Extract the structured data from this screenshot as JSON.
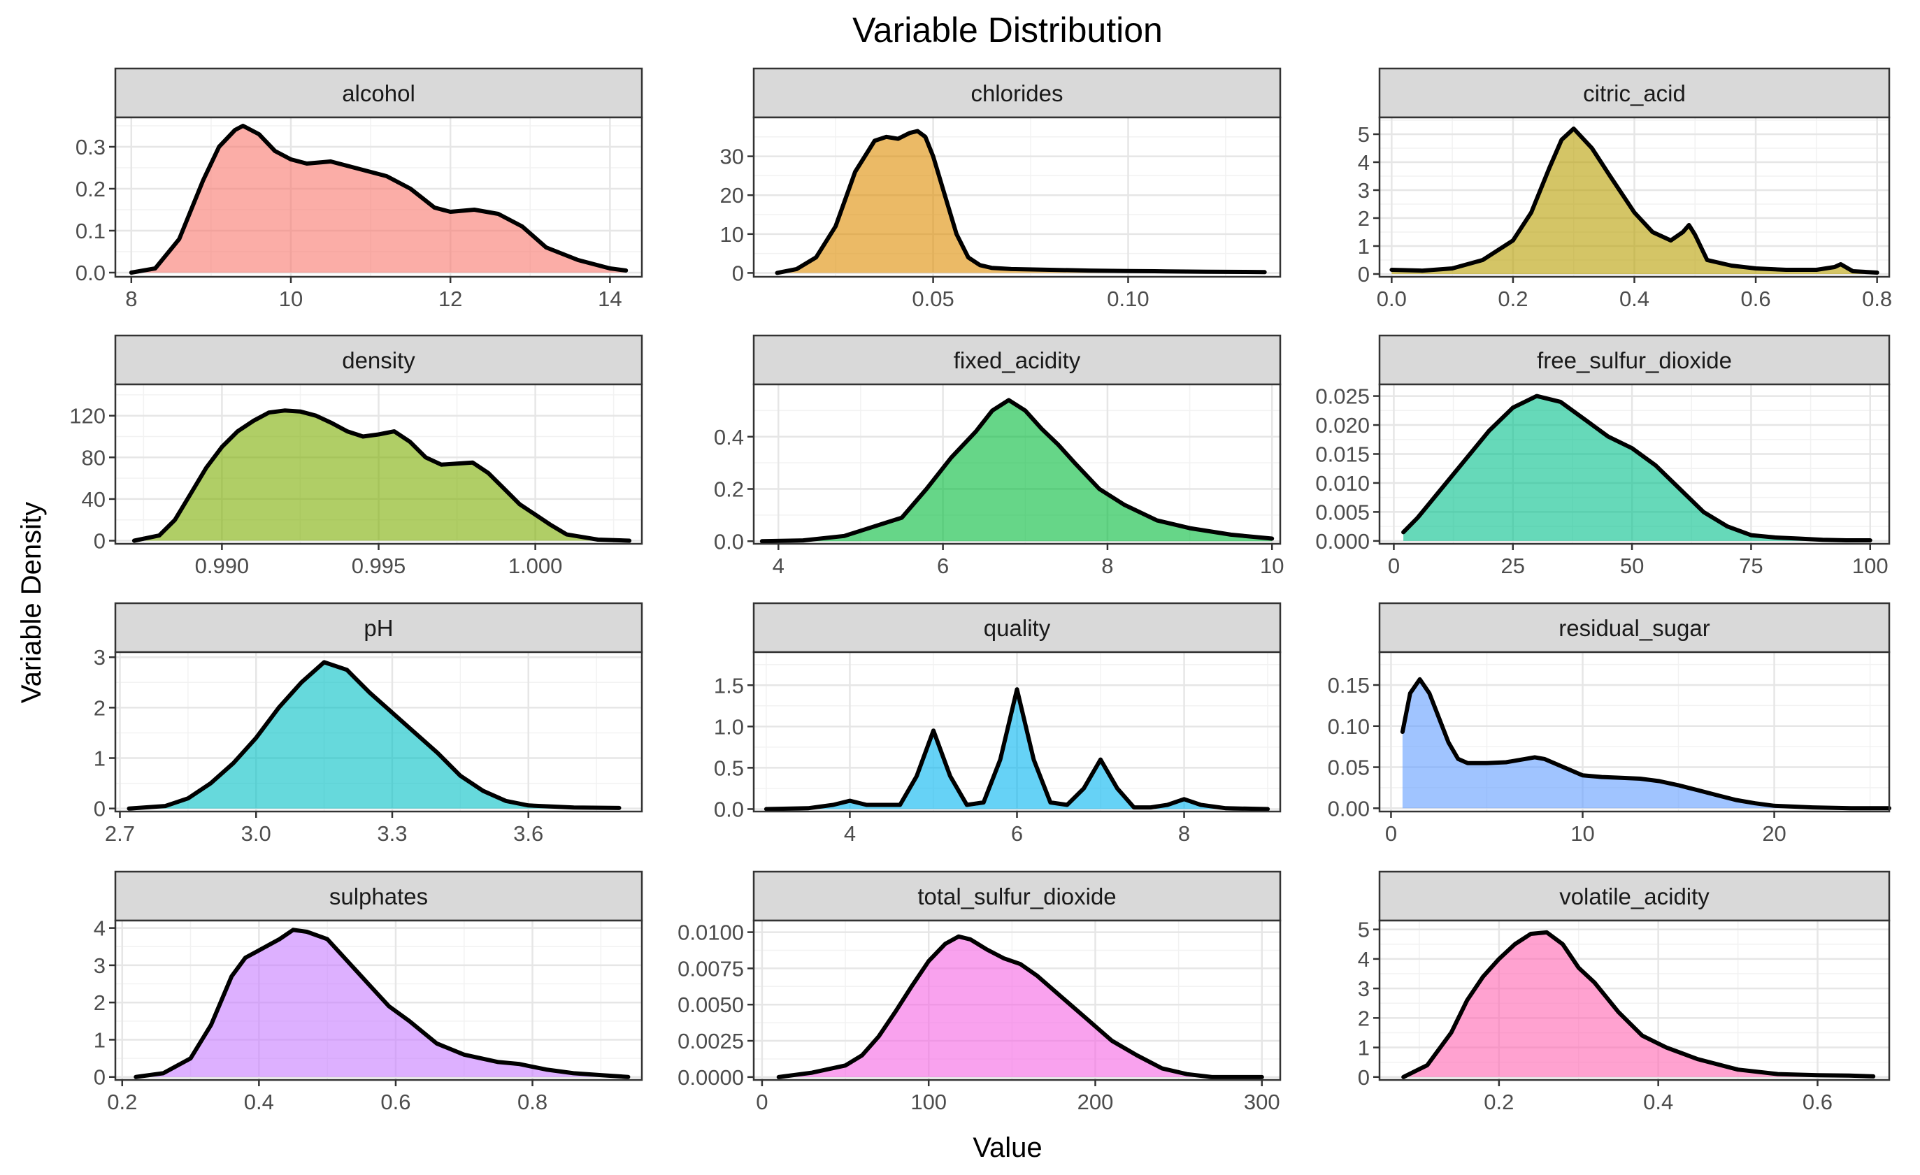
{
  "chart_data": {
    "type": "area",
    "title": "Variable Distribution",
    "xlabel": "Value",
    "ylabel": "Variable Density",
    "grid": true,
    "legend": "none",
    "panels": [
      {
        "name": "alcohol",
        "color": "#F8766D",
        "xlim": [
          7.8,
          14.4
        ],
        "ylim": [
          -0.01,
          0.37
        ],
        "xticks": [
          8,
          10,
          12,
          14
        ],
        "xtick_labels": [
          "8",
          "10",
          "12",
          "14"
        ],
        "yticks": [
          0,
          0.1,
          0.2,
          0.3
        ],
        "ytick_labels": [
          "0.0",
          "0.1",
          "0.2",
          "0.3"
        ],
        "x": [
          8.0,
          8.3,
          8.6,
          8.9,
          9.1,
          9.3,
          9.4,
          9.6,
          9.8,
          10.0,
          10.2,
          10.5,
          10.8,
          11.2,
          11.5,
          11.8,
          12.0,
          12.3,
          12.6,
          12.9,
          13.2,
          13.6,
          14.0,
          14.2
        ],
        "y": [
          0.0,
          0.01,
          0.08,
          0.22,
          0.3,
          0.34,
          0.35,
          0.33,
          0.29,
          0.27,
          0.26,
          0.265,
          0.25,
          0.23,
          0.2,
          0.155,
          0.145,
          0.15,
          0.14,
          0.11,
          0.06,
          0.03,
          0.01,
          0.005
        ]
      },
      {
        "name": "chlorides",
        "color": "#DE8C00",
        "xlim": [
          0.004,
          0.139
        ],
        "ylim": [
          -1.0,
          40
        ],
        "xticks": [
          0.05,
          0.1
        ],
        "xtick_labels": [
          "0.05",
          "0.10"
        ],
        "yticks": [
          0,
          10,
          20,
          30
        ],
        "ytick_labels": [
          "0",
          "10",
          "20",
          "30"
        ],
        "x": [
          0.01,
          0.015,
          0.02,
          0.025,
          0.03,
          0.035,
          0.038,
          0.041,
          0.044,
          0.046,
          0.048,
          0.05,
          0.053,
          0.056,
          0.059,
          0.062,
          0.065,
          0.07,
          0.08,
          0.09,
          0.1,
          0.11,
          0.12,
          0.13,
          0.135
        ],
        "y": [
          0.0,
          1.0,
          4.0,
          12.0,
          26.0,
          34.0,
          35.0,
          34.5,
          36.0,
          36.5,
          35.0,
          30.0,
          20.0,
          10.0,
          4.0,
          2.0,
          1.3,
          1.0,
          0.8,
          0.6,
          0.5,
          0.4,
          0.3,
          0.25,
          0.2
        ]
      },
      {
        "name": "citric_acid",
        "color": "#B79F00",
        "xlim": [
          -0.02,
          0.82
        ],
        "ylim": [
          -0.1,
          5.6
        ],
        "xticks": [
          0.0,
          0.2,
          0.4,
          0.6,
          0.8
        ],
        "xtick_labels": [
          "0.0",
          "0.2",
          "0.4",
          "0.6",
          "0.8"
        ],
        "yticks": [
          0,
          1,
          2,
          3,
          4,
          5
        ],
        "ytick_labels": [
          "0",
          "1",
          "2",
          "3",
          "4",
          "5"
        ],
        "x": [
          0.0,
          0.05,
          0.1,
          0.15,
          0.2,
          0.23,
          0.26,
          0.28,
          0.3,
          0.33,
          0.36,
          0.4,
          0.43,
          0.46,
          0.48,
          0.49,
          0.5,
          0.52,
          0.56,
          0.6,
          0.65,
          0.7,
          0.73,
          0.74,
          0.76,
          0.8
        ],
        "y": [
          0.15,
          0.12,
          0.2,
          0.5,
          1.2,
          2.2,
          3.8,
          4.8,
          5.2,
          4.5,
          3.5,
          2.2,
          1.5,
          1.2,
          1.5,
          1.75,
          1.4,
          0.5,
          0.3,
          0.2,
          0.15,
          0.15,
          0.25,
          0.35,
          0.1,
          0.05
        ]
      },
      {
        "name": "density",
        "color": "#7CAE00",
        "xlim": [
          0.9866,
          1.0034
        ],
        "ylim": [
          -3,
          150
        ],
        "xticks": [
          0.99,
          0.995,
          1.0
        ],
        "xtick_labels": [
          "0.990",
          "0.995",
          "1.000"
        ],
        "yticks": [
          0,
          40,
          80,
          120
        ],
        "ytick_labels": [
          "0",
          "40",
          "80",
          "120"
        ],
        "x": [
          0.9872,
          0.988,
          0.9885,
          0.989,
          0.9895,
          0.99,
          0.9905,
          0.991,
          0.9915,
          0.992,
          0.9925,
          0.993,
          0.9935,
          0.994,
          0.9945,
          0.995,
          0.9955,
          0.996,
          0.9965,
          0.997,
          0.9975,
          0.998,
          0.9985,
          0.999,
          0.9995,
          1.0,
          1.0005,
          1.001,
          1.002,
          1.003
        ],
        "y": [
          0.0,
          5.0,
          20.0,
          45.0,
          70.0,
          90.0,
          105.0,
          115.0,
          123.0,
          125.0,
          124.0,
          120.0,
          113.0,
          105.0,
          100.0,
          102.0,
          105.0,
          95.0,
          80.0,
          73.0,
          74.0,
          75.0,
          65.0,
          50.0,
          35.0,
          25.0,
          15.0,
          6.0,
          1.0,
          0.0
        ]
      },
      {
        "name": "fixed_acidity",
        "color": "#00BA38",
        "xlim": [
          3.7,
          10.1
        ],
        "ylim": [
          -0.01,
          0.6
        ],
        "xticks": [
          4,
          6,
          8,
          10
        ],
        "xtick_labels": [
          "4",
          "6",
          "8",
          "10"
        ],
        "yticks": [
          0,
          0.2,
          0.4
        ],
        "ytick_labels": [
          "0.0",
          "0.2",
          "0.4"
        ],
        "x": [
          3.8,
          4.3,
          4.8,
          5.0,
          5.2,
          5.5,
          5.8,
          6.1,
          6.4,
          6.6,
          6.8,
          7.0,
          7.2,
          7.4,
          7.6,
          7.9,
          8.2,
          8.6,
          9.0,
          9.5,
          10.0
        ],
        "y": [
          0.0,
          0.003,
          0.02,
          0.04,
          0.06,
          0.09,
          0.2,
          0.32,
          0.42,
          0.5,
          0.54,
          0.5,
          0.43,
          0.37,
          0.3,
          0.2,
          0.14,
          0.08,
          0.05,
          0.025,
          0.01
        ]
      },
      {
        "name": "free_sulfur_dioxide",
        "color": "#00C08B",
        "xlim": [
          -3,
          104
        ],
        "ylim": [
          -0.0005,
          0.027
        ],
        "xticks": [
          0,
          25,
          50,
          75,
          100
        ],
        "xtick_labels": [
          "0",
          "25",
          "50",
          "75",
          "100"
        ],
        "yticks": [
          0,
          0.005,
          0.01,
          0.015,
          0.02,
          0.025
        ],
        "ytick_labels": [
          "0.000",
          "0.005",
          "0.010",
          "0.015",
          "0.020",
          "0.025"
        ],
        "x": [
          2,
          5,
          10,
          15,
          20,
          25,
          30,
          35,
          40,
          45,
          50,
          55,
          60,
          65,
          70,
          75,
          80,
          85,
          90,
          95,
          100
        ],
        "y": [
          0.0015,
          0.004,
          0.009,
          0.014,
          0.019,
          0.023,
          0.025,
          0.024,
          0.021,
          0.018,
          0.016,
          0.013,
          0.009,
          0.005,
          0.0025,
          0.001,
          0.0006,
          0.0004,
          0.0002,
          0.0001,
          0.0001
        ]
      },
      {
        "name": "pH",
        "color": "#00BFC4",
        "xlim": [
          2.69,
          3.85
        ],
        "ylim": [
          -0.06,
          3.1
        ],
        "xticks": [
          2.7,
          3.0,
          3.3,
          3.6
        ],
        "xtick_labels": [
          "2.7",
          "3.0",
          "3.3",
          "3.6"
        ],
        "yticks": [
          0,
          1,
          2,
          3
        ],
        "ytick_labels": [
          "0",
          "1",
          "2",
          "3"
        ],
        "x": [
          2.72,
          2.8,
          2.85,
          2.9,
          2.95,
          3.0,
          3.05,
          3.1,
          3.15,
          3.2,
          3.25,
          3.3,
          3.35,
          3.4,
          3.45,
          3.5,
          3.55,
          3.6,
          3.7,
          3.8
        ],
        "y": [
          0.0,
          0.05,
          0.2,
          0.5,
          0.9,
          1.4,
          2.0,
          2.5,
          2.9,
          2.75,
          2.3,
          1.9,
          1.5,
          1.1,
          0.65,
          0.35,
          0.15,
          0.06,
          0.02,
          0.01
        ]
      },
      {
        "name": "quality",
        "color": "#00B4F0",
        "xlim": [
          2.85,
          9.15
        ],
        "ylim": [
          -0.03,
          1.9
        ],
        "xticks": [
          4,
          6,
          8
        ],
        "xtick_labels": [
          "4",
          "6",
          "8"
        ],
        "yticks": [
          0,
          0.5,
          1.0,
          1.5
        ],
        "ytick_labels": [
          "0.0",
          "0.5",
          "1.0",
          "1.5"
        ],
        "x": [
          3.0,
          3.5,
          3.8,
          4.0,
          4.2,
          4.6,
          4.8,
          5.0,
          5.2,
          5.4,
          5.6,
          5.8,
          6.0,
          6.2,
          6.4,
          6.6,
          6.8,
          7.0,
          7.2,
          7.4,
          7.6,
          7.8,
          8.0,
          8.2,
          8.5,
          9.0
        ],
        "y": [
          0.0,
          0.01,
          0.05,
          0.1,
          0.05,
          0.05,
          0.4,
          0.95,
          0.4,
          0.05,
          0.08,
          0.6,
          1.45,
          0.6,
          0.08,
          0.05,
          0.25,
          0.6,
          0.25,
          0.02,
          0.02,
          0.05,
          0.12,
          0.05,
          0.01,
          0.0
        ]
      },
      {
        "name": "residual_sugar",
        "color": "#619CFF",
        "xlim": [
          -0.6,
          26.0
        ],
        "ylim": [
          -0.004,
          0.19
        ],
        "xticks": [
          0,
          10,
          20
        ],
        "xtick_labels": [
          "0",
          "10",
          "20"
        ],
        "yticks": [
          0,
          0.05,
          0.1,
          0.15
        ],
        "ytick_labels": [
          "0.00",
          "0.05",
          "0.10",
          "0.15"
        ],
        "x": [
          0.6,
          1.0,
          1.5,
          2.0,
          2.5,
          3.0,
          3.5,
          4.0,
          5.0,
          6.0,
          7.0,
          7.5,
          8.0,
          9.0,
          10.0,
          11.0,
          12.0,
          13.0,
          14.0,
          15.0,
          16.0,
          17.0,
          18.0,
          19.0,
          20.0,
          22.0,
          24.0,
          26.0
        ],
        "y": [
          0.093,
          0.14,
          0.157,
          0.14,
          0.11,
          0.08,
          0.06,
          0.055,
          0.055,
          0.056,
          0.06,
          0.062,
          0.06,
          0.05,
          0.04,
          0.038,
          0.037,
          0.036,
          0.033,
          0.028,
          0.022,
          0.016,
          0.01,
          0.006,
          0.003,
          0.001,
          0.0,
          0.0
        ]
      },
      {
        "name": "sulphates",
        "color": "#C77CFF",
        "xlim": [
          0.19,
          0.96
        ],
        "ylim": [
          -0.08,
          4.2
        ],
        "xticks": [
          0.2,
          0.4,
          0.6,
          0.8
        ],
        "xtick_labels": [
          "0.2",
          "0.4",
          "0.6",
          "0.8"
        ],
        "yticks": [
          0,
          1,
          2,
          3,
          4
        ],
        "ytick_labels": [
          "0",
          "1",
          "2",
          "3",
          "4"
        ],
        "x": [
          0.22,
          0.26,
          0.3,
          0.33,
          0.36,
          0.38,
          0.4,
          0.43,
          0.45,
          0.47,
          0.5,
          0.53,
          0.56,
          0.59,
          0.62,
          0.66,
          0.7,
          0.75,
          0.78,
          0.82,
          0.86,
          0.9,
          0.94
        ],
        "y": [
          0.0,
          0.1,
          0.5,
          1.4,
          2.7,
          3.2,
          3.4,
          3.7,
          3.95,
          3.9,
          3.7,
          3.1,
          2.5,
          1.9,
          1.5,
          0.9,
          0.6,
          0.4,
          0.35,
          0.2,
          0.1,
          0.05,
          0.0
        ]
      },
      {
        "name": "total_sulfur_dioxide",
        "color": "#F564E3",
        "xlim": [
          -5,
          311
        ],
        "ylim": [
          -0.0002,
          0.0108
        ],
        "xticks": [
          0,
          100,
          200,
          300
        ],
        "xtick_labels": [
          "0",
          "100",
          "200",
          "300"
        ],
        "yticks": [
          0,
          0.0025,
          0.005,
          0.0075,
          0.01
        ],
        "ytick_labels": [
          "0.0000",
          "0.0025",
          "0.0050",
          "0.0075",
          "0.0100"
        ],
        "x": [
          10,
          30,
          50,
          60,
          70,
          80,
          90,
          100,
          110,
          118,
          125,
          135,
          145,
          155,
          165,
          180,
          195,
          210,
          225,
          240,
          255,
          270,
          290,
          300
        ],
        "y": [
          0.0,
          0.0003,
          0.0008,
          0.0015,
          0.0028,
          0.0045,
          0.0063,
          0.008,
          0.0092,
          0.0097,
          0.0095,
          0.0088,
          0.0082,
          0.0078,
          0.007,
          0.0055,
          0.004,
          0.0025,
          0.0015,
          0.0006,
          0.0002,
          0.0,
          0.0,
          0.0
        ]
      },
      {
        "name": "volatile_acidity",
        "color": "#FF64B0",
        "xlim": [
          0.05,
          0.69
        ],
        "ylim": [
          -0.1,
          5.3
        ],
        "xticks": [
          0.2,
          0.4,
          0.6
        ],
        "xtick_labels": [
          "0.2",
          "0.4",
          "0.6"
        ],
        "yticks": [
          0,
          1,
          2,
          3,
          4,
          5
        ],
        "ytick_labels": [
          "0",
          "1",
          "2",
          "3",
          "4",
          "5"
        ],
        "x": [
          0.08,
          0.11,
          0.14,
          0.16,
          0.18,
          0.2,
          0.22,
          0.24,
          0.26,
          0.28,
          0.3,
          0.32,
          0.35,
          0.38,
          0.41,
          0.45,
          0.5,
          0.55,
          0.6,
          0.64,
          0.67
        ],
        "y": [
          0.0,
          0.4,
          1.5,
          2.6,
          3.4,
          4.0,
          4.5,
          4.85,
          4.9,
          4.5,
          3.7,
          3.2,
          2.2,
          1.4,
          1.0,
          0.6,
          0.25,
          0.1,
          0.06,
          0.05,
          0.02
        ]
      }
    ]
  }
}
